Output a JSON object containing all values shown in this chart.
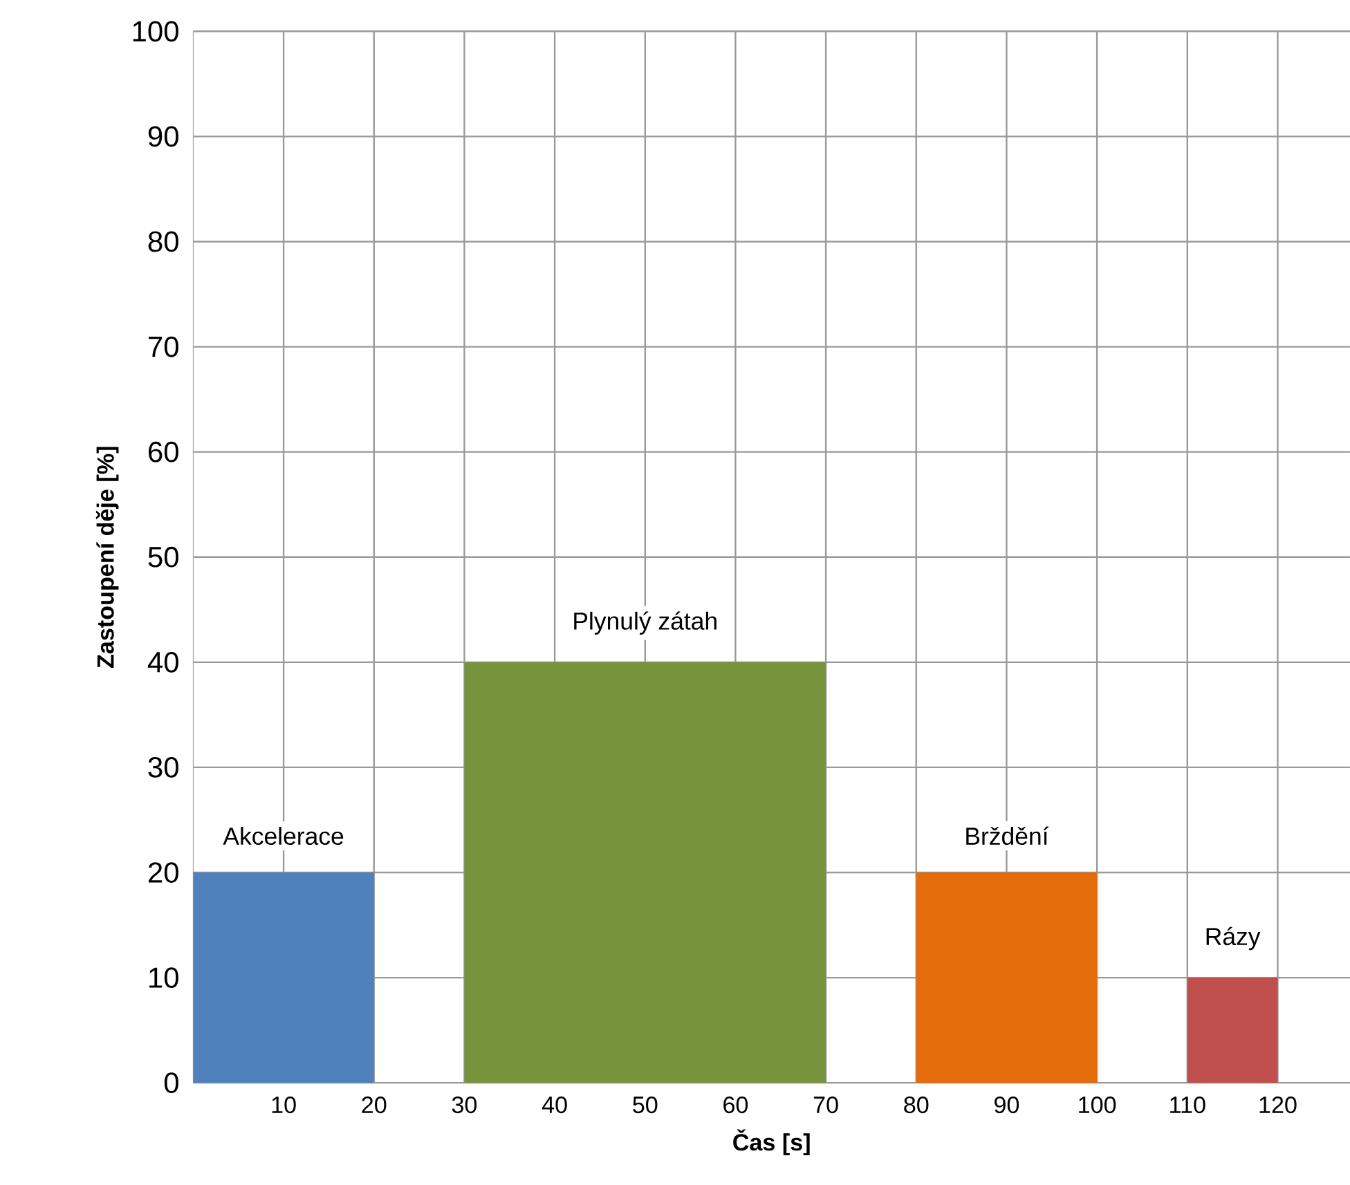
{
  "chart_data": {
    "type": "histogram",
    "bins": [
      0,
      20,
      30,
      70,
      80,
      100,
      110,
      120
    ],
    "values": [
      20,
      null,
      40,
      null,
      20,
      null,
      10
    ],
    "colors": [
      "#4f81bd",
      null,
      "#77933c",
      null,
      "#e46c0a",
      null,
      "#c0504d"
    ],
    "xlabel": "Čas [s]",
    "ylabel": "Zastoupení děje [%]",
    "xlim": [
      0,
      128
    ],
    "ylim": [
      0,
      100
    ],
    "xticks": [
      10,
      20,
      30,
      40,
      50,
      60,
      70,
      80,
      90,
      100,
      110,
      120
    ],
    "yticks": [
      0,
      10,
      20,
      30,
      40,
      50,
      60,
      70,
      80,
      90,
      100
    ],
    "grid": true,
    "annotations": [
      {
        "text": "Akcelerace",
        "x": 10,
        "y": 20
      },
      {
        "text": "Plynulý zátah",
        "x": 50,
        "y": 40
      },
      {
        "text": "Brždění",
        "x": 90,
        "y": 20
      },
      {
        "text": "Rázy",
        "x": 115,
        "y": 10
      }
    ]
  }
}
